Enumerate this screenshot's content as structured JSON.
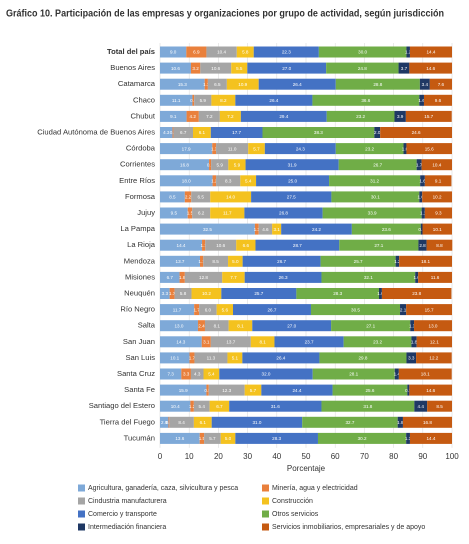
{
  "chart_data": {
    "type": "stacked-barh",
    "title": "Gráfico 10. Participación de las empresas y organizaciones por grupo de actividad, según jurisdicción",
    "x_label": "Porcentaje",
    "categories": [
      "Total del país",
      "Buenos Aires",
      "Catamarca",
      "Chaco",
      "Chubut",
      "Ciudad Autónoma de Buenos Aires",
      "Córdoba",
      "Corrientes",
      "Entre Ríos",
      "Formosa",
      "Jujuy",
      "La Pampa",
      "La Rioja",
      "Mendoza",
      "Misiones",
      "Neuquén",
      "Río Negro",
      "Salta",
      "San Juan",
      "San Luis",
      "Santa Cruz",
      "Santa Fe",
      "Santiago del Estero",
      "Tierra del Fuego",
      "Tucumán"
    ],
    "xlim": [
      0,
      100
    ],
    "xticks": [
      0,
      10,
      20,
      30,
      40,
      50,
      60,
      70,
      80,
      90,
      100
    ],
    "grid": true,
    "series": [
      {
        "name": "Agricultura, ganadería, caza, silvicultura y pesca",
        "color": "#7ea9d8",
        "values": [
          9.0,
          10.6,
          15.3,
          11.1,
          9.1,
          4.3,
          17.9,
          16.8,
          18.0,
          8.5,
          9.5,
          32.5,
          14.4,
          13.7,
          6.7,
          3.3,
          11.7,
          13.0,
          14.3,
          10.1,
          7.3,
          15.9,
          10.4,
          2.9,
          13.6
        ],
        "value_labels": [
          "9.0",
          "10.6",
          "15.3",
          "11.1",
          "9.1",
          "4.3",
          "17.9",
          "16.8",
          "18.0",
          "8.5",
          "9.5",
          "32.5",
          "14.4",
          "13.7",
          "6.7",
          "3.3",
          "11.7",
          "13.0",
          "14.3",
          "10.1",
          "7.3",
          "15.9",
          "10.4",
          "2.9",
          "13.6"
        ]
      },
      {
        "name": "Minería, agua y electricidad",
        "color": "#e9803c",
        "values": [
          6.9,
          3.2,
          1.1,
          0.6,
          4.2,
          0.3,
          1.3,
          0.7,
          1.2,
          2.2,
          1.5,
          1.3,
          1.1,
          1.1,
          1.8,
          1.7,
          1.7,
          2.4,
          3.1,
          1.7,
          3.3,
          0.8,
          1.2,
          0.3,
          1.5
        ],
        "value_labels": [
          "6.9",
          "3.2",
          "1.1",
          "0.6",
          "4.2",
          "0.3",
          "1.3",
          "0.7",
          "1.2",
          "2.2",
          "1.5",
          "1.3",
          "1.1",
          "1.1",
          "1.8",
          "1.7",
          "1.7",
          "2.4",
          "3.1",
          "1.7",
          "3.3",
          "0.8",
          "1.2",
          "0.3",
          "1.5"
        ]
      },
      {
        "name": "Cindustria manufacturera",
        "color": "#a5a5a5",
        "values": [
          10.4,
          10.6,
          6.5,
          5.9,
          7.2,
          6.7,
          11.0,
          5.9,
          8.3,
          6.5,
          6.2,
          4.6,
          10.6,
          8.5,
          12.8,
          5.8,
          6.0,
          8.1,
          13.7,
          11.3,
          4.3,
          12.3,
          5.4,
          8.4,
          5.7
        ],
        "value_labels": [
          "10.4",
          "10.6",
          "6.5",
          "5.9",
          "7.2",
          "6.7",
          "11.0",
          "5.9",
          "8.3",
          "6.5",
          "6.2",
          "4.6",
          "10.6",
          "8.5",
          "12.8",
          "5.8",
          "6.0",
          "8.1",
          "13.7",
          "11.3",
          "4.3",
          "12.3",
          "5.4",
          "8.4",
          "5.7"
        ]
      },
      {
        "name": "Construcción",
        "color": "#f4c21f",
        "values": [
          5.8,
          5.5,
          10.9,
          8.2,
          7.2,
          6.1,
          5.7,
          5.9,
          5.4,
          14.0,
          11.7,
          3.1,
          6.6,
          5.0,
          7.7,
          10.2,
          5.6,
          8.1,
          8.1,
          5.1,
          5.4,
          5.7,
          6.7,
          6.1,
          5.0
        ],
        "value_labels": [
          "5.8",
          "5.5",
          "10.9",
          "8.2",
          "7.2",
          "6.1",
          "5.7",
          "5.9",
          "5.4",
          "14.0",
          "11.7",
          "3.1",
          "6.6",
          "5.0",
          "7.7",
          "10.2",
          "5.6",
          "8.1",
          "8.1",
          "5.1",
          "5.4",
          "5.7",
          "6.7",
          "6.1",
          "5.0"
        ]
      },
      {
        "name": "Comercio y transporte",
        "color": "#4472c4",
        "values": [
          22.3,
          27.0,
          26.4,
          26.4,
          29.4,
          17.7,
          24.3,
          31.9,
          25.0,
          27.5,
          26.8,
          24.2,
          28.7,
          26.7,
          26.3,
          25.7,
          26.7,
          27.0,
          23.7,
          26.4,
          32.0,
          24.4,
          31.6,
          31.0,
          28.3
        ],
        "value_labels": [
          "22.3",
          "27.0",
          "26.4",
          "26.4",
          "29.4",
          "17.7",
          "24.3",
          "31.9",
          "25.0",
          "27.5",
          "26.8",
          "24.2",
          "28.7",
          "26.7",
          "26.3",
          "25.7",
          "26.7",
          "27.0",
          "23.7",
          "26.4",
          "32.0",
          "24.4",
          "31.6",
          "31.0",
          "28.3"
        ]
      },
      {
        "name": "Otros servicios",
        "color": "#70ad47",
        "values": [
          30.0,
          24.8,
          28.8,
          36.6,
          23.2,
          38.3,
          23.2,
          26.7,
          31.2,
          30.1,
          33.9,
          23.6,
          27.1,
          25.7,
          32.1,
          28.3,
          30.5,
          27.1,
          23.2,
          29.8,
          28.1,
          25.6,
          31.8,
          32.7,
          30.2
        ],
        "value_labels": [
          "30.0",
          "24.8",
          "28.8",
          "36.6",
          "23.2",
          "38.3",
          "23.2",
          "26.7",
          "31.2",
          "30.1",
          "33.9",
          "23.6",
          "27.1",
          "25.7",
          "32.1",
          "28.3",
          "30.5",
          "27.1",
          "23.2",
          "29.8",
          "28.1",
          "25.6",
          "31.8",
          "32.7",
          "30.2"
        ]
      },
      {
        "name": "Intermediación financiera",
        "color": "#1f3864",
        "values": [
          1.2,
          3.7,
          3.4,
          1.6,
          3.9,
          2.0,
          1.0,
          1.7,
          1.6,
          1.0,
          1.1,
          0.6,
          2.8,
          1.2,
          1.0,
          1.0,
          2.1,
          1.3,
          1.8,
          3.3,
          1.4,
          0.7,
          4.4,
          1.8,
          1.3
        ],
        "value_labels": [
          "1.2",
          "3.7",
          "3.4",
          "1.6",
          "3.9",
          "2.0",
          "1.0",
          "1.7",
          "1.6",
          "1.0",
          "1.1",
          "0.6",
          "2.8",
          "1.2",
          "1.0",
          "1.0",
          "2.1",
          "1.3",
          "1.8",
          "3.3",
          "1.4",
          "0.7",
          "4.4",
          "1.8",
          "1.3"
        ]
      },
      {
        "name": "Servicios inmobiliarios, empresariales y de apoyo",
        "color": "#c55a11",
        "values": [
          14.4,
          14.6,
          7.6,
          9.6,
          15.7,
          24.6,
          15.6,
          10.4,
          9.1,
          10.2,
          9.3,
          10.1,
          8.8,
          18.1,
          11.6,
          23.8,
          15.7,
          13.0,
          12.1,
          12.2,
          18.1,
          14.6,
          8.5,
          16.8,
          14.4
        ],
        "value_labels": [
          "14.4",
          "14.6",
          "7.6",
          "9.6",
          "15.7",
          "24.6",
          "15.6",
          "10.4",
          "9.1",
          "10.2",
          "9.3",
          "10.1",
          "8.8",
          "18.1",
          "11.6",
          "23.8",
          "15.7",
          "13.0",
          "12.1",
          "12.2",
          "18.1",
          "14.6",
          "8.5",
          "16.8",
          "14.4"
        ]
      }
    ]
  }
}
